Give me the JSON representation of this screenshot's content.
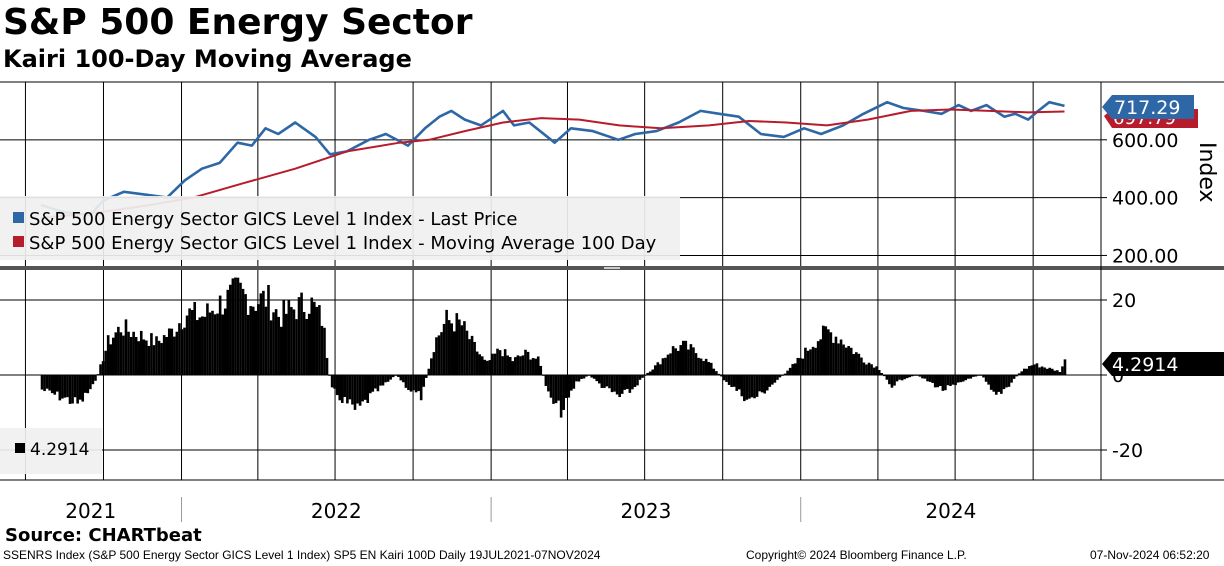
{
  "header": {
    "title": "S&P 500 Energy Sector",
    "subtitle": "Kairi 100-Day Moving Average"
  },
  "colors": {
    "price": "#2e67a6",
    "moving_average": "#b71c2c",
    "kairi": "#000000",
    "grid": "#000000"
  },
  "chart_data": [
    {
      "type": "line",
      "ylabel": "Index",
      "ylim": [
        160,
        800
      ],
      "yticks": [
        200,
        400,
        600
      ],
      "ytick_labels": [
        "200.00",
        "400.00",
        "600.00"
      ],
      "legend_placement": "bottom-left",
      "last_price_label": "717.29",
      "last_ma_label": "697.79",
      "series": [
        {
          "name": "S&P 500 Energy Sector GICS Level 1 Index - Last Price",
          "x": [
            "2021-07-19",
            "2021-08-15",
            "2021-09-15",
            "2021-10-01",
            "2021-10-25",
            "2021-11-20",
            "2021-12-15",
            "2022-01-05",
            "2022-01-25",
            "2022-02-15",
            "2022-03-08",
            "2022-03-25",
            "2022-04-10",
            "2022-04-25",
            "2022-05-15",
            "2022-06-08",
            "2022-06-25",
            "2022-07-15",
            "2022-08-10",
            "2022-08-30",
            "2022-09-25",
            "2022-10-15",
            "2022-11-01",
            "2022-11-15",
            "2022-12-01",
            "2022-12-20",
            "2023-01-15",
            "2023-01-28",
            "2023-02-15",
            "2023-03-17",
            "2023-04-05",
            "2023-05-01",
            "2023-05-31",
            "2023-06-20",
            "2023-07-15",
            "2023-08-10",
            "2023-09-05",
            "2023-09-27",
            "2023-10-20",
            "2023-11-15",
            "2023-12-12",
            "2024-01-05",
            "2024-01-25",
            "2024-02-20",
            "2024-03-15",
            "2024-04-12",
            "2024-05-01",
            "2024-05-25",
            "2024-06-15",
            "2024-07-05",
            "2024-07-20",
            "2024-08-07",
            "2024-08-28",
            "2024-09-10",
            "2024-09-25",
            "2024-10-07",
            "2024-10-20",
            "2024-11-07"
          ],
          "values": [
            375,
            350,
            340,
            390,
            420,
            410,
            400,
            460,
            500,
            520,
            590,
            580,
            640,
            620,
            660,
            610,
            550,
            560,
            600,
            620,
            580,
            640,
            680,
            700,
            670,
            650,
            700,
            650,
            660,
            590,
            640,
            630,
            600,
            620,
            630,
            660,
            700,
            690,
            680,
            620,
            610,
            640,
            620,
            650,
            690,
            730,
            710,
            700,
            690,
            720,
            700,
            720,
            680,
            690,
            670,
            700,
            730,
            717.29
          ]
        },
        {
          "name": "S&P 500 Energy Sector GICS Level 1 Index - Moving Average 100 Day",
          "x": [
            "2021-07-19",
            "2021-09-15",
            "2021-11-15",
            "2022-01-15",
            "2022-03-15",
            "2022-05-15",
            "2022-07-15",
            "2022-09-15",
            "2022-10-20",
            "2022-12-01",
            "2023-01-15",
            "2023-03-01",
            "2023-04-15",
            "2023-06-01",
            "2023-07-20",
            "2023-09-15",
            "2023-11-01",
            "2023-12-15",
            "2024-02-01",
            "2024-03-20",
            "2024-05-10",
            "2024-06-25",
            "2024-08-10",
            "2024-09-25",
            "2024-11-07"
          ],
          "values": [
            330,
            345,
            370,
            400,
            450,
            500,
            560,
            590,
            600,
            630,
            660,
            675,
            670,
            650,
            640,
            650,
            665,
            660,
            650,
            670,
            700,
            705,
            700,
            695,
            697.79
          ]
        }
      ]
    },
    {
      "type": "bar",
      "ylim": [
        -28,
        28
      ],
      "yticks": [
        -20,
        0,
        20
      ],
      "ytick_labels": [
        "-20",
        "0",
        "20"
      ],
      "last_value_label": "4.2914",
      "legend_label": "4.2914",
      "series": [
        {
          "name": "Kairi 100-Day Moving Average",
          "x": [
            "2021-07-19",
            "2021-08-10",
            "2021-09-01",
            "2021-09-20",
            "2021-10-05",
            "2021-10-20",
            "2021-11-10",
            "2021-12-01",
            "2021-12-20",
            "2022-01-05",
            "2022-01-25",
            "2022-02-10",
            "2022-02-25",
            "2022-03-08",
            "2022-03-25",
            "2022-04-10",
            "2022-04-25",
            "2022-05-10",
            "2022-05-31",
            "2022-06-15",
            "2022-06-25",
            "2022-07-10",
            "2022-07-25",
            "2022-08-10",
            "2022-08-25",
            "2022-09-10",
            "2022-09-25",
            "2022-10-10",
            "2022-10-25",
            "2022-11-08",
            "2022-11-25",
            "2022-12-10",
            "2022-12-25",
            "2023-01-10",
            "2023-01-25",
            "2023-02-10",
            "2023-02-25",
            "2023-03-10",
            "2023-03-25",
            "2023-04-10",
            "2023-04-25",
            "2023-05-10",
            "2023-05-31",
            "2023-06-15",
            "2023-06-30",
            "2023-07-15",
            "2023-07-31",
            "2023-08-15",
            "2023-08-31",
            "2023-09-15",
            "2023-09-30",
            "2023-10-15",
            "2023-10-31",
            "2023-11-15",
            "2023-11-30",
            "2023-12-15",
            "2023-12-31",
            "2024-01-15",
            "2024-01-31",
            "2024-02-15",
            "2024-02-29",
            "2024-03-15",
            "2024-03-31",
            "2024-04-15",
            "2024-04-30",
            "2024-05-15",
            "2024-05-31",
            "2024-06-15",
            "2024-06-30",
            "2024-07-15",
            "2024-07-31",
            "2024-08-15",
            "2024-08-31",
            "2024-09-15",
            "2024-09-30",
            "2024-10-15",
            "2024-10-31",
            "2024-11-07"
          ],
          "values": [
            -4,
            -6,
            -8,
            -2,
            9,
            13,
            11,
            9,
            12,
            17,
            16,
            19,
            21,
            23,
            20,
            21,
            16,
            18,
            20,
            15,
            -4,
            -7,
            -10,
            -6,
            -3,
            0,
            -4,
            -6,
            9,
            15,
            14,
            8,
            3,
            7,
            4,
            6,
            4,
            -7,
            -10,
            -2,
            0,
            -3,
            -6,
            -4,
            0,
            3,
            7,
            8,
            6,
            3,
            -1,
            -4,
            -7,
            -5,
            -2,
            1,
            5,
            9,
            12,
            10,
            7,
            4,
            2,
            -3,
            -1,
            0,
            -2,
            -4,
            -3,
            -1,
            0,
            -6,
            -3,
            1,
            3,
            2,
            1,
            4.2914
          ]
        }
      ]
    }
  ],
  "axis": {
    "year_labels": [
      "2021",
      "2022",
      "2023",
      "2024"
    ]
  },
  "footer": {
    "source": "Source: CHARTbeat",
    "ticker": "SSENRS Index (S&P 500 Energy Sector GICS Level 1 Index) SP5 EN Kairi 100D  Daily 19JUL2021-07NOV2024",
    "copyright": "Copyright© 2024 Bloomberg Finance L.P.",
    "timestamp": "07-Nov-2024 06:52:20"
  }
}
